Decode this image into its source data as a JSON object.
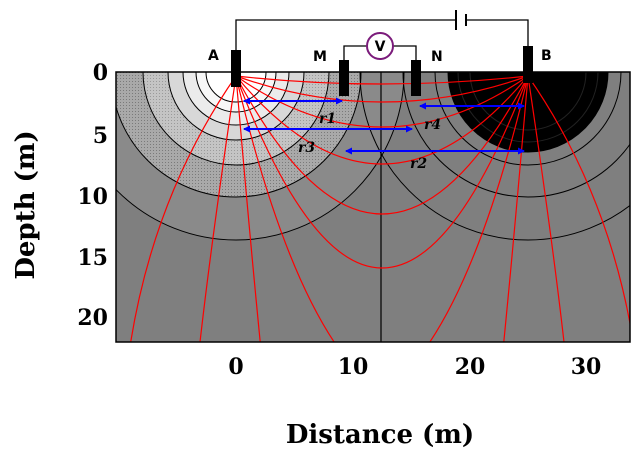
{
  "axes": {
    "xlabel": "Distance (m)",
    "ylabel": "Depth (m)",
    "xticks": [
      "0",
      "10",
      "20",
      "30"
    ],
    "yticks": [
      "0",
      "5",
      "10",
      "15",
      "20"
    ]
  },
  "electrodes": {
    "a": "A",
    "m": "M",
    "n": "N",
    "b": "B"
  },
  "voltmeter": "V",
  "distances": {
    "r1": "r1",
    "r2": "r2",
    "r3": "r3",
    "r4": "r4"
  },
  "colors": {
    "background": "#7f7f7f",
    "current_lines": "#ff0000",
    "distance_arrows": "#0000ff",
    "equipotential": "#000000",
    "voltmeter_ring": "#7b1b7b"
  }
}
